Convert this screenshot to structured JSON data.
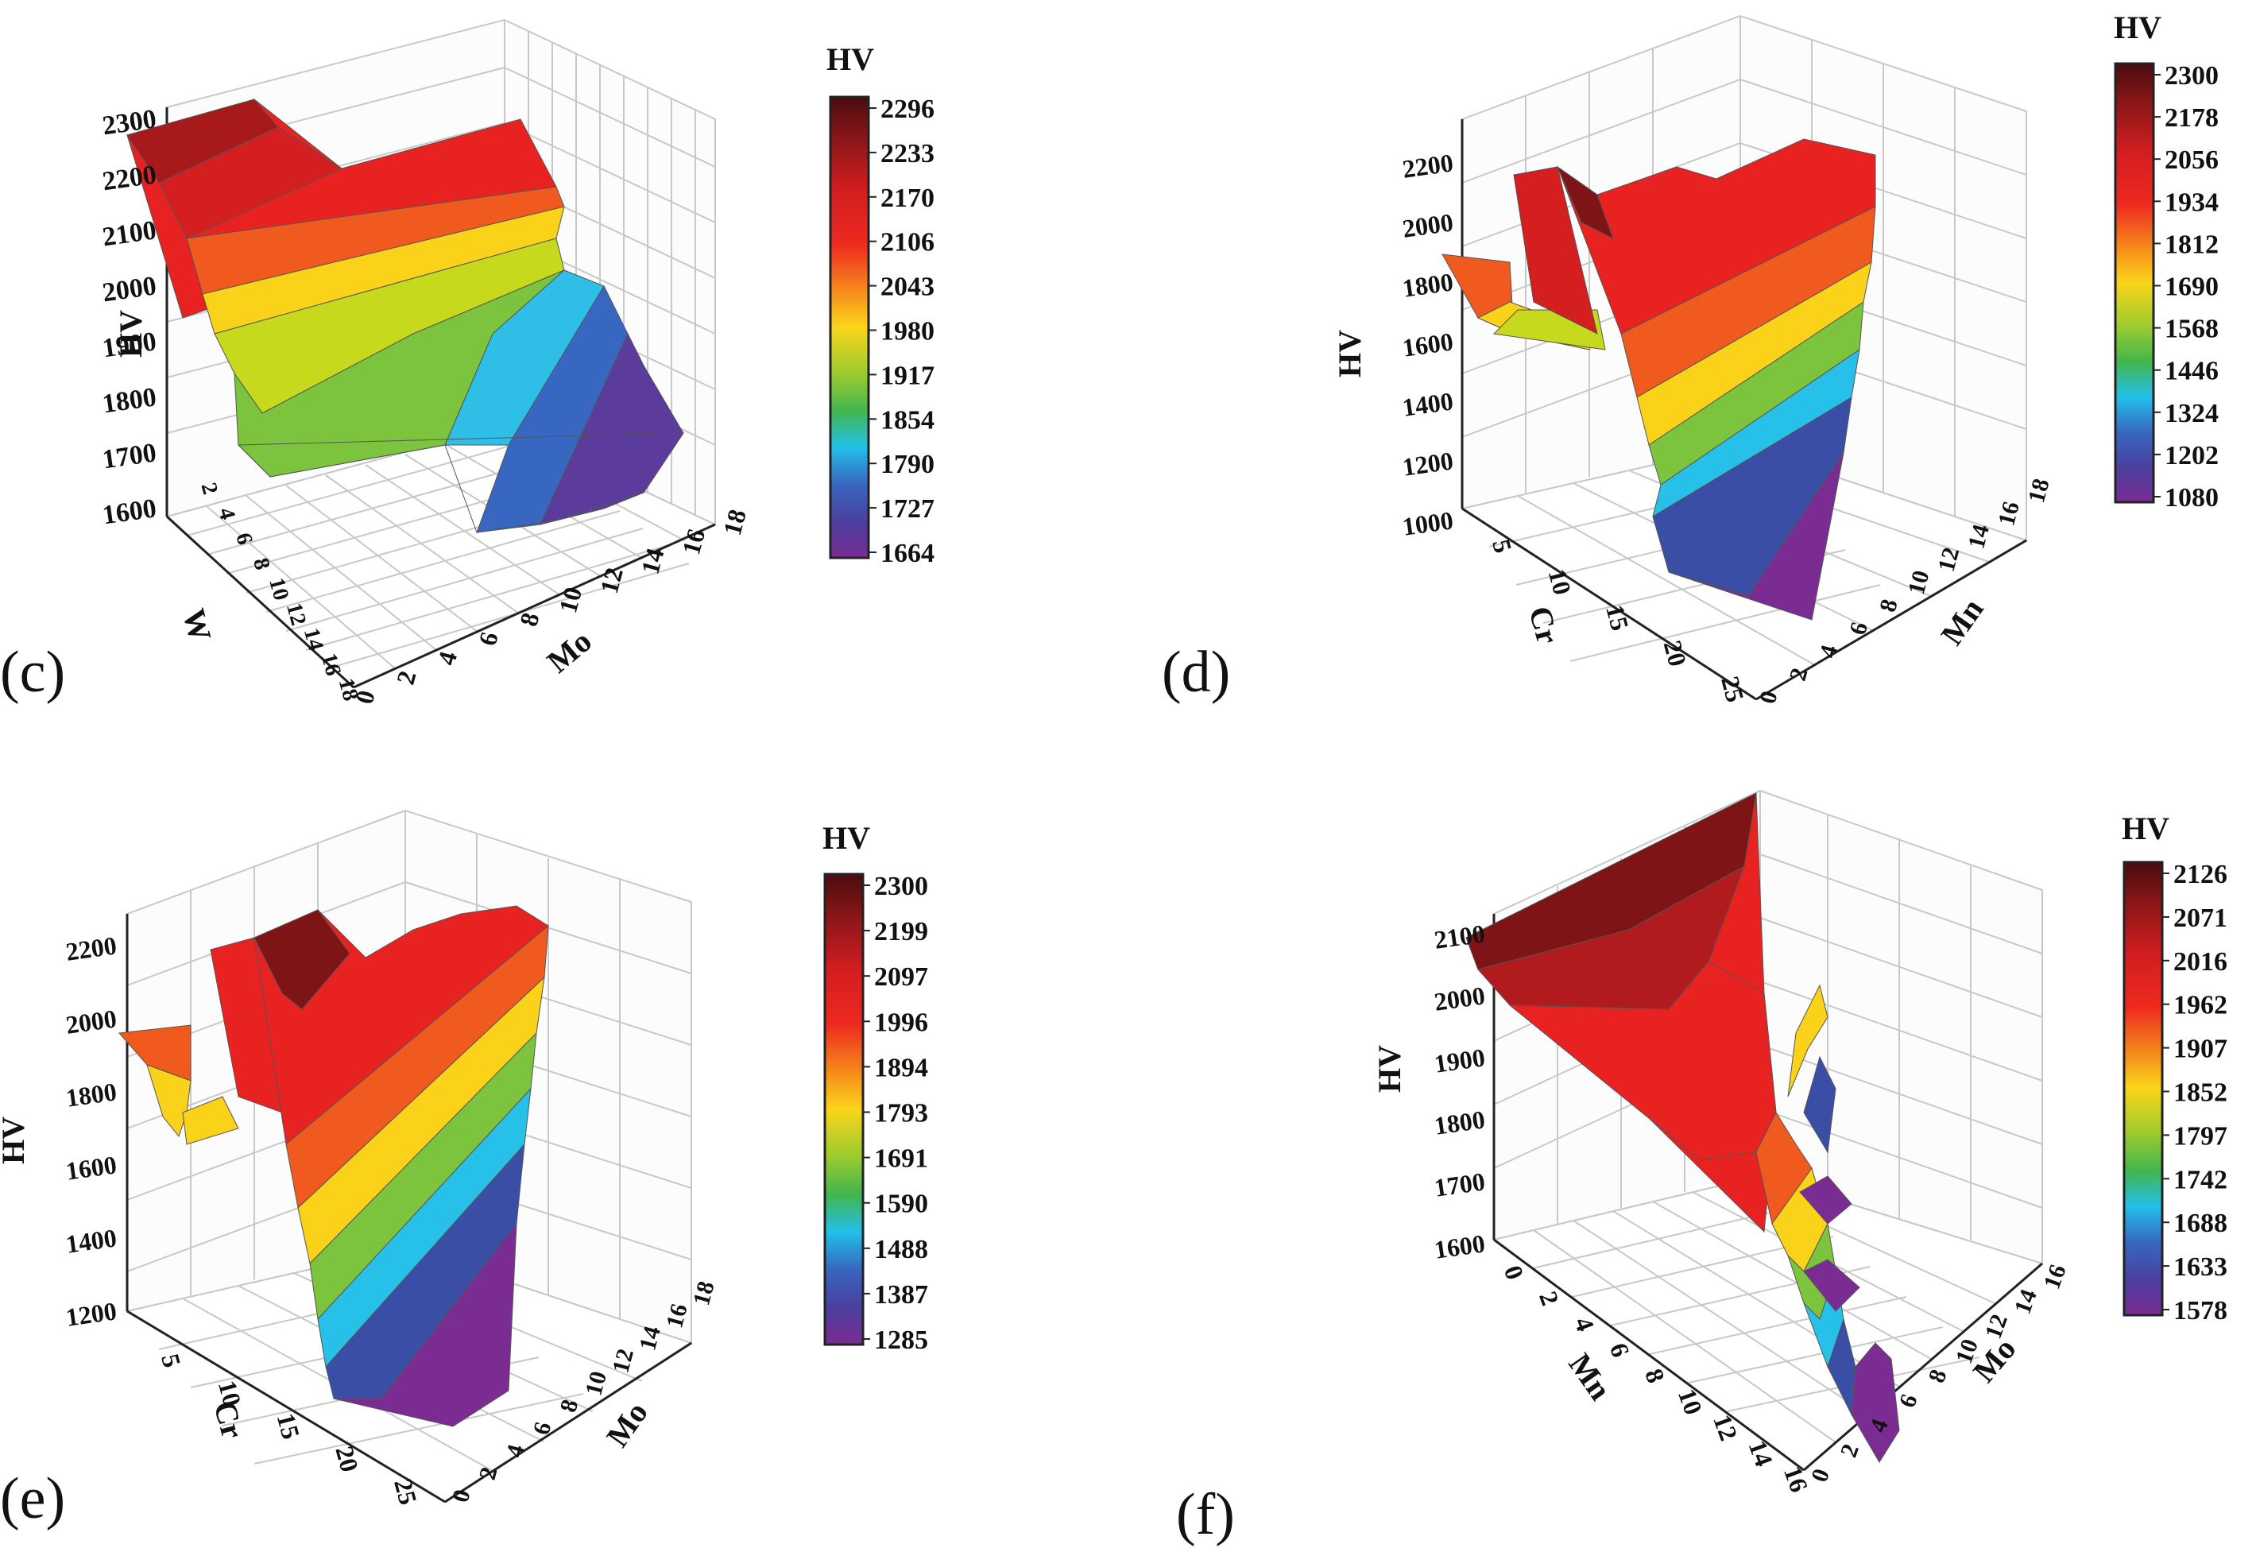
{
  "chart_data": [
    {
      "type": "surface",
      "panel_label": "(c)",
      "xlabel": "W",
      "ylabel": "Mo",
      "zlabel": "HV",
      "x_ticks": [
        "2",
        "4",
        "6",
        "8",
        "10",
        "12",
        "14",
        "16",
        "18"
      ],
      "y_ticks": [
        "0",
        "2",
        "4",
        "6",
        "8",
        "10",
        "12",
        "14",
        "16",
        "18"
      ],
      "z_ticks": [
        "1600",
        "1700",
        "1800",
        "1900",
        "2000",
        "2100",
        "2200",
        "2300"
      ],
      "zlim": [
        1600,
        2300
      ],
      "colorbar_title": "HV",
      "colorbar_ticks": [
        "2296",
        "2233",
        "2170",
        "2106",
        "2043",
        "1980",
        "1917",
        "1854",
        "1790",
        "1727",
        "1664"
      ],
      "surface_hv_corners": {
        "near": 1880,
        "left": 2300,
        "back": 2170,
        "right": 1680
      }
    },
    {
      "type": "surface",
      "panel_label": "(d)",
      "xlabel": "Cr",
      "ylabel": "Mn",
      "zlabel": "HV",
      "x_ticks": [
        "5",
        "10",
        "15",
        "20",
        "25"
      ],
      "y_ticks": [
        "0",
        "2",
        "4",
        "6",
        "8",
        "10",
        "12",
        "14",
        "16",
        "18"
      ],
      "z_ticks": [
        "1000",
        "1200",
        "1400",
        "1600",
        "1800",
        "2000",
        "2200"
      ],
      "zlim": [
        1000,
        2300
      ],
      "colorbar_title": "HV",
      "colorbar_ticks": [
        "2300",
        "2178",
        "2056",
        "1934",
        "1812",
        "1690",
        "1568",
        "1446",
        "1324",
        "1202",
        "1080"
      ]
    },
    {
      "type": "surface",
      "panel_label": "(e)",
      "xlabel": "Cr",
      "ylabel": "Mo",
      "zlabel": "HV",
      "x_ticks": [
        "5",
        "10",
        "15",
        "20",
        "25"
      ],
      "y_ticks": [
        "0",
        "2",
        "4",
        "6",
        "8",
        "10",
        "12",
        "14",
        "16",
        "18"
      ],
      "z_ticks": [
        "1200",
        "1400",
        "1600",
        "1800",
        "2000",
        "2200"
      ],
      "zlim": [
        1200,
        2300
      ],
      "colorbar_title": "HV",
      "colorbar_ticks": [
        "2300",
        "2199",
        "2097",
        "1996",
        "1894",
        "1793",
        "1691",
        "1590",
        "1488",
        "1387",
        "1285"
      ]
    },
    {
      "type": "surface",
      "panel_label": "(f)",
      "xlabel": "Mn",
      "ylabel": "Mo",
      "zlabel": "HV",
      "x_ticks": [
        "0",
        "2",
        "4",
        "6",
        "8",
        "10",
        "12",
        "14",
        "16"
      ],
      "y_ticks": [
        "0",
        "2",
        "4",
        "6",
        "8",
        "10",
        "12",
        "14",
        "16"
      ],
      "z_ticks": [
        "1600",
        "1700",
        "1800",
        "1900",
        "2000",
        "2100"
      ],
      "zlim": [
        1600,
        2150
      ],
      "colorbar_title": "HV",
      "colorbar_ticks": [
        "2126",
        "2071",
        "2016",
        "1962",
        "1907",
        "1852",
        "1797",
        "1742",
        "1688",
        "1633",
        "1578"
      ]
    }
  ],
  "colormap": [
    "#5b0f12",
    "#8b1718",
    "#c51d20",
    "#e82121",
    "#f04e1e",
    "#f7911c",
    "#fbd21a",
    "#c6d91c",
    "#7cc33e",
    "#48b64d",
    "#26c0e8",
    "#3a7dc9",
    "#3a4ea6",
    "#5b3b9b",
    "#7a2c93"
  ]
}
